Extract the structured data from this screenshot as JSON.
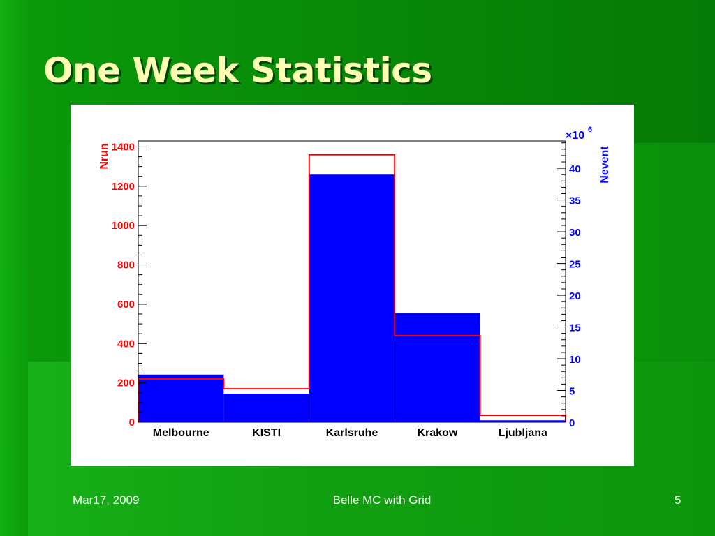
{
  "slide": {
    "title": "One Week Statistics",
    "footer_date": "Mar17, 2009",
    "footer_center": "Belle MC with Grid",
    "page_number": "5"
  },
  "colors": {
    "background": "#0a8c0a",
    "title": "#ffffb3",
    "nrun_line": "#ff0000",
    "nevent_fill": "#0000ff"
  },
  "chart_data": {
    "type": "bar",
    "categories": [
      "Melbourne",
      "KISTI",
      "Karlsruhe",
      "Krakow",
      "Ljubljana"
    ],
    "series": [
      {
        "name": "Nevent",
        "axis": "right",
        "style": "filled",
        "values": [
          7.5,
          4.5,
          39,
          17.2,
          0.3
        ]
      },
      {
        "name": "Nrun",
        "axis": "left",
        "style": "step-outline",
        "values": [
          220,
          170,
          1360,
          440,
          35
        ]
      }
    ],
    "left_axis": {
      "label": "Nrun",
      "ylim": [
        0,
        1430
      ],
      "ticks": [
        0,
        200,
        400,
        600,
        800,
        1000,
        1200,
        1400
      ]
    },
    "right_axis": {
      "label": "Nevent",
      "multiplier": "×10",
      "exponent": "6",
      "ylim": [
        0,
        44.3
      ],
      "ticks": [
        0,
        5,
        10,
        15,
        20,
        25,
        30,
        35,
        40
      ]
    },
    "grid": false,
    "legend": "none"
  }
}
